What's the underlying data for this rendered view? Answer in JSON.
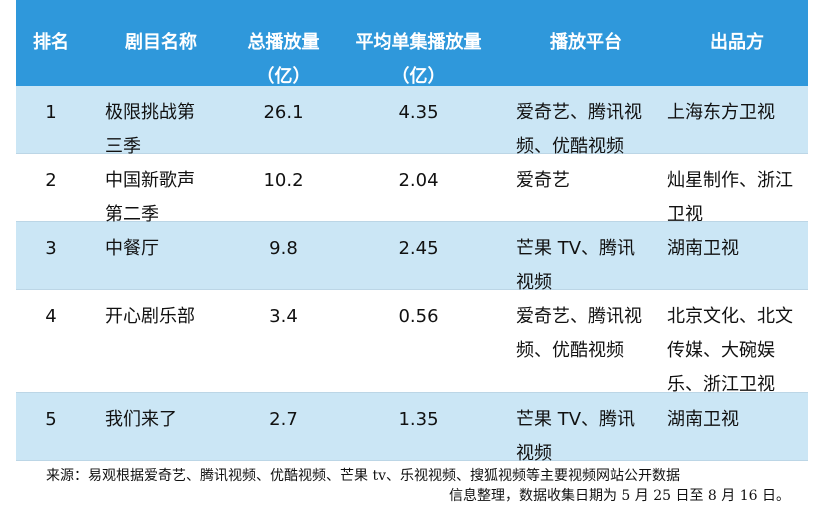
{
  "table": {
    "headers": [
      {
        "line1": "排名",
        "line2": ""
      },
      {
        "line1": "剧目名称",
        "line2": ""
      },
      {
        "line1": "总播放量",
        "line2": "（亿）"
      },
      {
        "line1": "平均单集播放量",
        "line2": "（亿）"
      },
      {
        "line1": "播放平台",
        "line2": ""
      },
      {
        "line1": "出品方",
        "line2": ""
      }
    ],
    "rows": [
      {
        "rank": "1",
        "name": [
          "极限挑战第",
          "三季"
        ],
        "total": "26.1",
        "avg": "4.35",
        "platform": [
          "爱奇艺、腾讯视",
          "频、优酷视频"
        ],
        "producer": [
          "上海东方卫视"
        ]
      },
      {
        "rank": "2",
        "name": [
          "中国新歌声",
          "第二季"
        ],
        "total": "10.2",
        "avg": "2.04",
        "platform": [
          "爱奇艺"
        ],
        "producer": [
          "灿星制作、浙江",
          "卫视"
        ]
      },
      {
        "rank": "3",
        "name": [
          "中餐厅"
        ],
        "total": "9.8",
        "avg": "2.45",
        "platform": [
          "芒果 TV、腾讯",
          "视频"
        ],
        "producer": [
          "湖南卫视"
        ]
      },
      {
        "rank": "4",
        "name": [
          "开心剧乐部"
        ],
        "total": "3.4",
        "avg": "0.56",
        "platform": [
          "爱奇艺、腾讯视",
          "频、优酷视频"
        ],
        "producer": [
          "北京文化、北文",
          "传媒、大碗娱",
          "乐、浙江卫视"
        ]
      },
      {
        "rank": "5",
        "name": [
          "我们来了"
        ],
        "total": "2.7",
        "avg": "1.35",
        "platform": [
          "芒果 TV、腾讯",
          "视频"
        ],
        "producer": [
          "湖南卫视"
        ]
      }
    ]
  },
  "source": {
    "line1": "来源：易观根据爱奇艺、腾讯视频、优酷视频、芒果 tv、乐视视频、搜狐视频等主要视频网站公开数据",
    "line2": "信息整理，数据收集日期为 5 月 25 日至 8 月 16 日。"
  }
}
